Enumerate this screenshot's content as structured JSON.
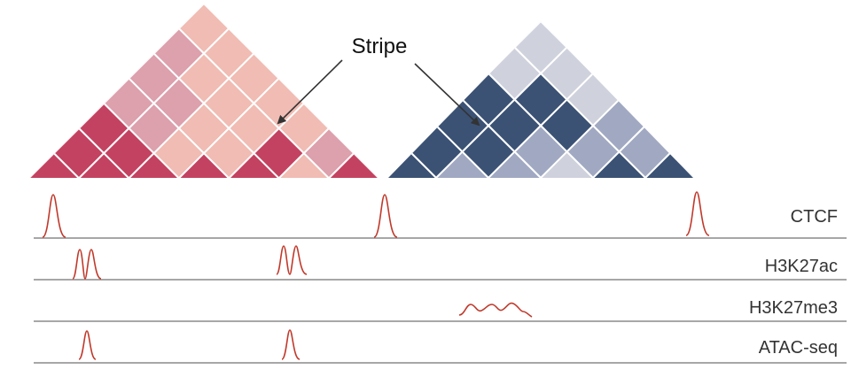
{
  "callout": {
    "label": "Stripe"
  },
  "colors": {
    "red_dark": "#c44261",
    "red_mid": "#dda0ad",
    "red_light": "#f0bcb3",
    "blue_dark": "#3b5275",
    "blue_mid": "#a1a9c2",
    "blue_light": "#cfd2dc",
    "peak": "#c0392b",
    "track_line": "#8a8a8a"
  },
  "tracks": [
    {
      "label": "CTCF"
    },
    {
      "label": "H3K27ac"
    },
    {
      "label": "H3K27me3"
    },
    {
      "label": "ATAC-seq"
    }
  ]
}
